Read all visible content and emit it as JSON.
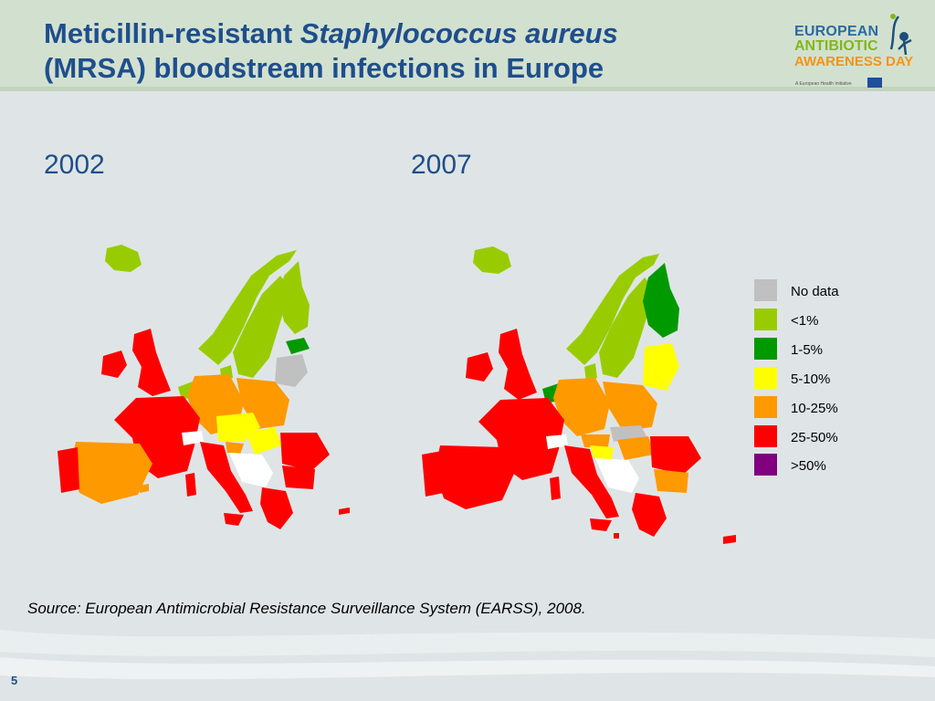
{
  "slide": {
    "title_part1": "Meticillin-resistant ",
    "title_italic": "Staphylococcus aureus",
    "title_line2": "(MRSA) bloodstream infections in Europe",
    "page_number": "5"
  },
  "logo": {
    "line1": "EUROPEAN",
    "line2": "ANTIBIOTIC",
    "line3": "AWARENESS DAY",
    "tagline": "A European Health Initiative"
  },
  "maps": [
    {
      "year": "2002"
    },
    {
      "year": "2007"
    }
  ],
  "legend": {
    "items": [
      {
        "label": "No data",
        "color": "#c0c0c0"
      },
      {
        "label": "<1%",
        "color": "#99cc00"
      },
      {
        "label": "1-5%",
        "color": "#009900"
      },
      {
        "label": "5-10%",
        "color": "#ffff00"
      },
      {
        "label": "10-25%",
        "color": "#ff9900"
      },
      {
        "label": "25-50%",
        "color": "#ff0000"
      },
      {
        "label": ">50%",
        "color": "#800080"
      }
    ]
  },
  "source": "Source: European Antimicrobial Resistance Surveillance System (EARSS), 2008."
}
